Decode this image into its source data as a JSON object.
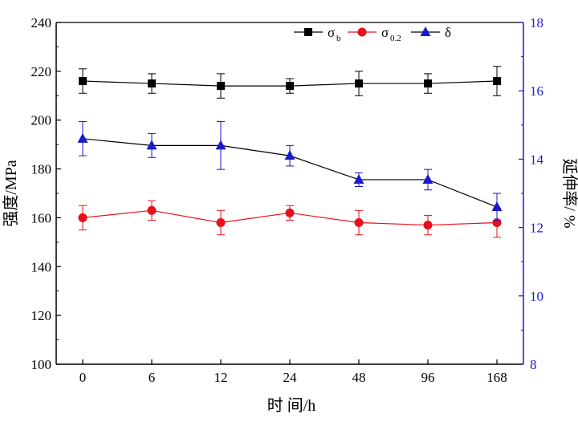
{
  "chart_data": {
    "type": "line",
    "title": "",
    "xlabel": "时 间/h",
    "ylabel_left": "强度/MPa",
    "ylabel_right": "延伸率/ %",
    "categories": [
      "0",
      "6",
      "12",
      "24",
      "48",
      "96",
      "168"
    ],
    "ylim_left": [
      100,
      240
    ],
    "yticks_left": [
      "100",
      "120",
      "140",
      "160",
      "180",
      "200",
      "220",
      "240"
    ],
    "ylim_right": [
      8,
      18
    ],
    "yticks_right": [
      "8",
      "10",
      "12",
      "14",
      "16",
      "18"
    ],
    "right_axis_color": "#1a1acc",
    "series": [
      {
        "name": "σ_b",
        "legend_main": "σ",
        "legend_sub": "b",
        "axis": "left",
        "color": "#000000",
        "marker": "square",
        "values": [
          216,
          215,
          214,
          214,
          215,
          215,
          216
        ],
        "errors": [
          5,
          4,
          5,
          3,
          5,
          4,
          6
        ]
      },
      {
        "name": "σ_0.2",
        "legend_main": "σ",
        "legend_sub": "0.2",
        "axis": "left",
        "color": "#e8101a",
        "marker": "circle",
        "values": [
          160,
          163,
          158,
          162,
          158,
          157,
          158
        ],
        "errors": [
          5,
          4,
          5,
          3,
          5,
          4,
          6
        ]
      },
      {
        "name": "δ",
        "legend_main": "δ",
        "legend_sub": "",
        "axis": "right",
        "color": "#1a1acc",
        "marker": "triangle",
        "line_color": "#000000",
        "values": [
          14.6,
          14.4,
          14.4,
          14.1,
          13.4,
          13.4,
          12.6
        ],
        "errors": [
          0.5,
          0.35,
          0.7,
          0.3,
          0.2,
          0.3,
          0.4
        ]
      }
    ]
  }
}
